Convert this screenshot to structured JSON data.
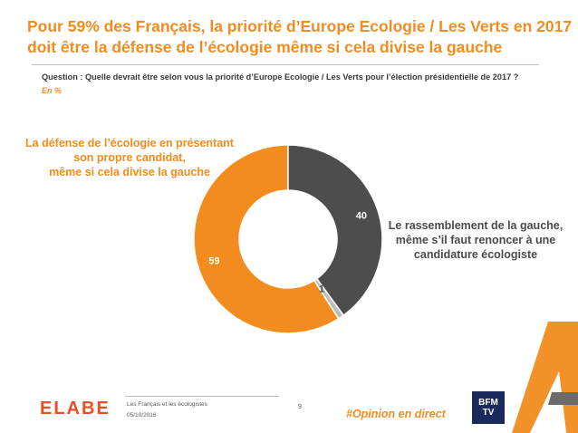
{
  "header": {
    "title_line1": "Pour 59% des Français, la priorité d’Europe Ecologie / Les Verts en 2017",
    "title_line2": "doit être la défense de l’écologie même si cela divise la gauche",
    "question": "Question : Quelle devrait être selon vous la priorité d’Europe Ecologie / Les Verts pour l’élection présidentielle de 2017 ?",
    "unit": "En %"
  },
  "chart_data": {
    "type": "pie",
    "donut": true,
    "slices": [
      {
        "label": "La défense de l’écologie en présentant son propre candidat, même si cela divise la gauche",
        "value": 59,
        "color": "#f28c1e"
      },
      {
        "label": "Le rassemblement de la gauche, même s’il faut renoncer à une candidature écologiste",
        "value": 40,
        "color": "#4d4d4d"
      },
      {
        "label": "",
        "value": 1,
        "color": "#bdbdbd"
      }
    ]
  },
  "labels": {
    "left": [
      "La défense de l’écologie en présentant",
      "son propre candidat,",
      "même si cela divise la gauche"
    ],
    "right": [
      "Le rassemblement de la gauche,",
      "même s’il faut renoncer à une",
      "candidature écologiste"
    ]
  },
  "footer": {
    "logo": "ELABE",
    "survey": "Les Français et les écologistes",
    "date": "05/10/2016",
    "page": "9",
    "hashtag": "#Opinion en direct",
    "partner": "BFM TV"
  },
  "colors": {
    "accent": "#f28c1e",
    "dark": "#4d4d4d"
  }
}
